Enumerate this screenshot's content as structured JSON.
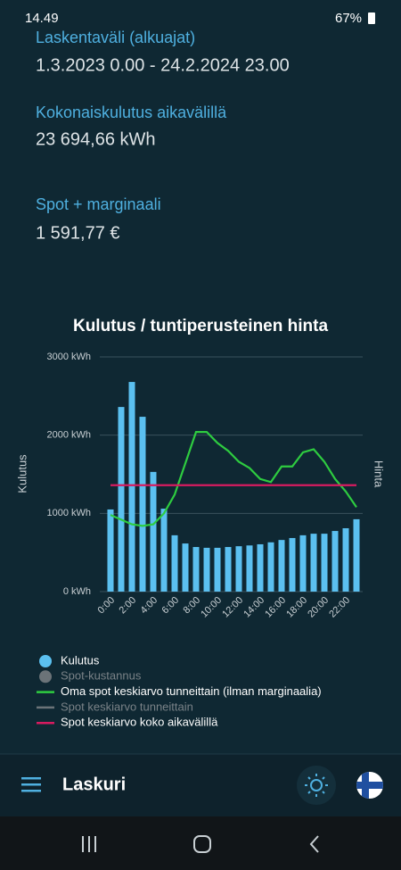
{
  "status_bar": {
    "time": "14.49",
    "battery": "67%"
  },
  "summary": [
    {
      "label": "Laskentaväli (alkuajat)",
      "value": "1.3.2023 0.00 - 24.2.2024 23.00"
    },
    {
      "label": "Kokonaiskulutus aikavälillä",
      "value": "23 694,66 kWh"
    },
    {
      "label": "Spot + marginaali",
      "value": "1 591,77 €"
    }
  ],
  "chart_data": {
    "type": "bar",
    "title": "Kulutus / tuntiperusteinen hinta",
    "y_label": "Kulutus",
    "y2_label": "Hinta",
    "categories": [
      "0:00",
      null,
      "2:00",
      null,
      "4:00",
      null,
      "6:00",
      null,
      "8:00",
      null,
      "10:00",
      null,
      "12:00",
      null,
      "14:00",
      null,
      "16:00",
      null,
      "18:00",
      null,
      "20:00",
      null,
      "22:00",
      null
    ],
    "ylim": [
      0,
      3000
    ],
    "yticks": [
      {
        "value": 0,
        "label": "0 kWh"
      },
      {
        "value": 1000,
        "label": "1000 kWh"
      },
      {
        "value": 2000,
        "label": "2000 kWh"
      },
      {
        "value": 3000,
        "label": "3000 kWh"
      }
    ],
    "y2lim": [
      0,
      15
    ],
    "grid": true,
    "series": [
      {
        "name": "Kulutus",
        "type": "bar",
        "color": "#5bc0f0",
        "values": [
          1050,
          2360,
          2680,
          2235,
          1530,
          1060,
          720,
          615,
          570,
          560,
          560,
          570,
          580,
          590,
          605,
          630,
          660,
          685,
          720,
          740,
          740,
          775,
          810,
          925
        ]
      },
      {
        "name": "Spot-kustannus",
        "type": "bar",
        "color": "#6b7378",
        "hidden": true
      },
      {
        "name": "Oma spot keskiarvo tunneittain (ilman marginaalia)",
        "type": "line",
        "axis": "y2",
        "color": "#2ecc40",
        "values": [
          4.9,
          4.6,
          4.3,
          4.2,
          4.3,
          5.0,
          6.2,
          8.2,
          10.2,
          10.2,
          9.5,
          9.0,
          8.3,
          7.9,
          7.2,
          7.0,
          8.0,
          8.0,
          8.9,
          9.1,
          8.3,
          7.2,
          6.4,
          5.4
        ]
      },
      {
        "name": "Spot keskiarvo tunneittain",
        "type": "line",
        "color": "#6b7378",
        "hidden": true
      },
      {
        "name": "Spot keskiarvo koko aikavälillä",
        "type": "line",
        "axis": "y2",
        "color": "#d81b60",
        "values": [
          6.8,
          6.8,
          6.8,
          6.8,
          6.8,
          6.8,
          6.8,
          6.8,
          6.8,
          6.8,
          6.8,
          6.8,
          6.8,
          6.8,
          6.8,
          6.8,
          6.8,
          6.8,
          6.8,
          6.8,
          6.8,
          6.8,
          6.8,
          6.8
        ]
      }
    ]
  },
  "app_bar": {
    "title": "Laskuri"
  }
}
